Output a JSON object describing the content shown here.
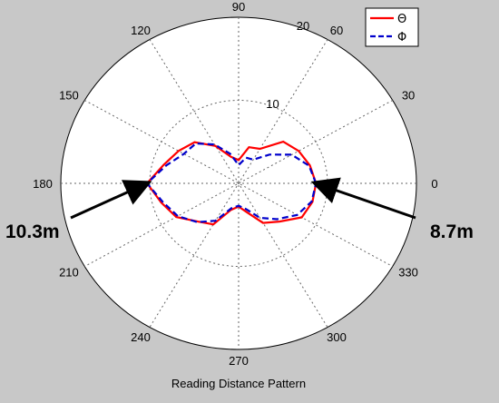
{
  "chart_data": {
    "type": "polar-line",
    "xlabel": "Reading Distance Pattern",
    "angle_ticks": [
      "0",
      "30",
      "60",
      "90",
      "120",
      "150",
      "180",
      "210",
      "240",
      "270",
      "300",
      "330"
    ],
    "radial_ticks": [
      "10",
      "20"
    ],
    "rlim": [
      0,
      20
    ],
    "grid": true,
    "legend_position": "top-right",
    "series": [
      {
        "name": "Θ",
        "color": "#ff0000",
        "dash": "solid",
        "angles": [
          0,
          15,
          30,
          45,
          60,
          75,
          90,
          105,
          120,
          135,
          150,
          165,
          180,
          195,
          210,
          225,
          240,
          255,
          270,
          285,
          300,
          315,
          330,
          345
        ],
        "values": [
          8.7,
          8.3,
          7.8,
          7.1,
          4.8,
          4.5,
          2.8,
          3.3,
          5.2,
          7.0,
          7.8,
          8.7,
          10.3,
          9.0,
          8.1,
          6.5,
          5.7,
          3.3,
          2.8,
          3.6,
          5.5,
          6.5,
          8.2,
          8.6
        ]
      },
      {
        "name": "Φ",
        "color": "#0000cc",
        "dash": "dashed",
        "angles": [
          0,
          15,
          30,
          45,
          60,
          75,
          90,
          105,
          120,
          135,
          150,
          165,
          180,
          195,
          210,
          225,
          240,
          255,
          270,
          285,
          300,
          315,
          330,
          345
        ],
        "values": [
          8.7,
          8.2,
          6.9,
          4.9,
          3.3,
          3.2,
          2.2,
          3.7,
          5.4,
          6.8,
          7.1,
          8.4,
          10.3,
          8.8,
          7.9,
          6.6,
          5.2,
          3.1,
          2.7,
          3.2,
          4.8,
          6.1,
          7.6,
          8.5
        ]
      }
    ],
    "annotations": [
      {
        "text": "10.3m",
        "angle": 180,
        "value": 10.3
      },
      {
        "text": "8.7m",
        "angle": 0,
        "value": 8.7
      }
    ]
  }
}
